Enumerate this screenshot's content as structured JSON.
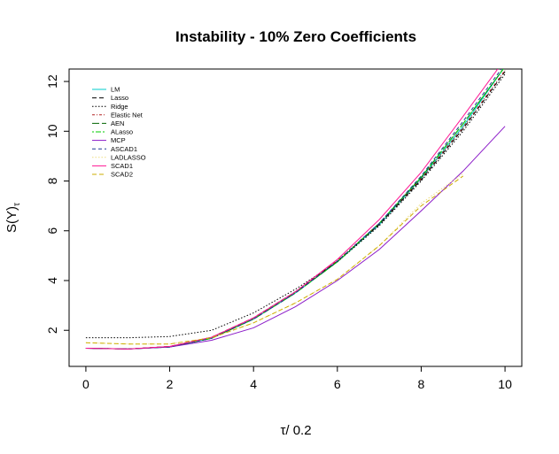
{
  "chart_data": {
    "type": "line",
    "title": "Instability - 10% Zero Coefficients",
    "xlabel": "τ/ 0.2",
    "ylabel_main": "S(Y)",
    "ylabel_sub": "τ",
    "xlim": [
      -0.4,
      10.4
    ],
    "ylim": [
      0.55,
      12.5
    ],
    "xticks": [
      0,
      2,
      4,
      6,
      8,
      10
    ],
    "yticks": [
      2,
      4,
      6,
      8,
      10,
      12
    ],
    "grid": false,
    "legend_position": "top-left",
    "x": [
      0,
      1,
      2,
      3,
      4,
      5,
      6,
      7,
      8,
      9,
      10
    ],
    "series": [
      {
        "name": "LM",
        "color": "#00CDCD",
        "dash": "",
        "values": [
          1.28,
          1.25,
          1.33,
          1.68,
          2.45,
          3.5,
          4.75,
          6.25,
          8.1,
          10.2,
          12.6
        ]
      },
      {
        "name": "Lasso",
        "color": "#000000",
        "dash": "5,3",
        "values": [
          1.28,
          1.25,
          1.35,
          1.72,
          2.5,
          3.55,
          4.78,
          6.25,
          8.05,
          10.1,
          12.4
        ]
      },
      {
        "name": "Ridge",
        "color": "#000000",
        "dash": "1.5,2",
        "values": [
          1.7,
          1.7,
          1.75,
          2.0,
          2.7,
          3.65,
          4.75,
          6.2,
          8.0,
          10.0,
          12.3
        ]
      },
      {
        "name": "Elastic Net",
        "color": "#B22222",
        "dash": "3,2,1,2",
        "values": [
          1.28,
          1.25,
          1.35,
          1.72,
          2.5,
          3.55,
          4.8,
          6.3,
          8.1,
          10.15,
          12.45
        ]
      },
      {
        "name": "AEN",
        "color": "#006400",
        "dash": "8,3",
        "values": [
          1.28,
          1.25,
          1.33,
          1.68,
          2.45,
          3.5,
          4.75,
          6.3,
          8.15,
          10.3,
          12.6
        ]
      },
      {
        "name": "ALasso",
        "color": "#00CD00",
        "dash": "2,2,6,2",
        "values": [
          1.28,
          1.25,
          1.33,
          1.68,
          2.45,
          3.5,
          4.75,
          6.3,
          8.15,
          10.3,
          12.6
        ]
      },
      {
        "name": "MCP",
        "color": "#8B1AC8",
        "dash": "",
        "values": [
          1.28,
          1.25,
          1.33,
          1.6,
          2.1,
          2.95,
          4.0,
          5.25,
          6.8,
          8.4,
          10.2
        ]
      },
      {
        "name": "ASCAD1",
        "color": "#1F3A93",
        "dash": "4,3",
        "values": [
          1.28,
          1.25,
          1.33,
          1.68,
          2.45,
          3.5,
          4.78,
          6.3,
          8.2,
          10.4,
          12.7
        ]
      },
      {
        "name": "LADLASSO",
        "color": "#EEDD82",
        "dash": "1.5,2",
        "values": [
          1.5,
          1.45,
          1.45,
          1.7,
          2.3,
          3.1,
          4.05,
          5.4,
          7.1,
          8.3,
          null
        ]
      },
      {
        "name": "SCAD1",
        "color": "#FF1493",
        "dash": "",
        "values": [
          1.28,
          1.25,
          1.35,
          1.72,
          2.5,
          3.55,
          4.85,
          6.45,
          8.35,
          10.6,
          12.9
        ]
      },
      {
        "name": "SCAD2",
        "color": "#CDAD00",
        "dash": "5,3",
        "values": [
          1.5,
          1.45,
          1.45,
          1.7,
          2.3,
          3.1,
          4.05,
          5.4,
          7.0,
          8.2,
          null
        ]
      }
    ]
  }
}
